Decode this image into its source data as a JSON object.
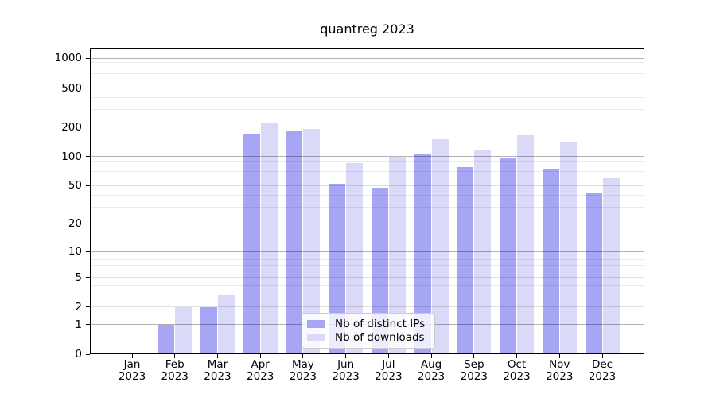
{
  "chart_data": {
    "type": "bar",
    "title": "quantreg 2023",
    "x_ticks": [
      {
        "month": "Jan",
        "year": "2023"
      },
      {
        "month": "Feb",
        "year": "2023"
      },
      {
        "month": "Mar",
        "year": "2023"
      },
      {
        "month": "Apr",
        "year": "2023"
      },
      {
        "month": "May",
        "year": "2023"
      },
      {
        "month": "Jun",
        "year": "2023"
      },
      {
        "month": "Jul",
        "year": "2023"
      },
      {
        "month": "Aug",
        "year": "2023"
      },
      {
        "month": "Sep",
        "year": "2023"
      },
      {
        "month": "Oct",
        "year": "2023"
      },
      {
        "month": "Nov",
        "year": "2023"
      },
      {
        "month": "Dec",
        "year": "2023"
      }
    ],
    "series": [
      {
        "name": "Nb of distinct IPs",
        "color": "#a6a6f4",
        "values": [
          0,
          1,
          2,
          172,
          186,
          52,
          48,
          107,
          78,
          97,
          75,
          42
        ]
      },
      {
        "name": "Nb of downloads",
        "color": "#dadaf8",
        "values": [
          0,
          2,
          3,
          220,
          193,
          85,
          100,
          153,
          116,
          165,
          138,
          61
        ]
      }
    ],
    "y_axis": {
      "scale": "log1p",
      "tick_values": [
        0,
        1,
        2,
        5,
        10,
        20,
        50,
        100,
        200,
        500,
        1000
      ],
      "decade_lines": [
        1,
        10,
        100,
        1000
      ],
      "minor_lines": [
        3,
        4,
        6,
        7,
        8,
        9,
        30,
        40,
        60,
        70,
        80,
        90,
        300,
        400,
        600,
        700,
        800,
        900
      ],
      "ylim": [
        0,
        1280
      ]
    },
    "legend": {
      "position": "lower center"
    },
    "grid": true
  },
  "colors": {
    "bar_ips": "#a6a6f4",
    "bar_downloads": "#dadaf8",
    "grid_decade": "rgba(0,0,0,0.30)",
    "grid_labeled": "rgba(0,0,0,0.12)",
    "grid_minor": "rgba(0,0,0,0.08)",
    "spine": "#000000",
    "legend_border": "#cccccc",
    "background": "#ffffff",
    "text": "#000000"
  }
}
